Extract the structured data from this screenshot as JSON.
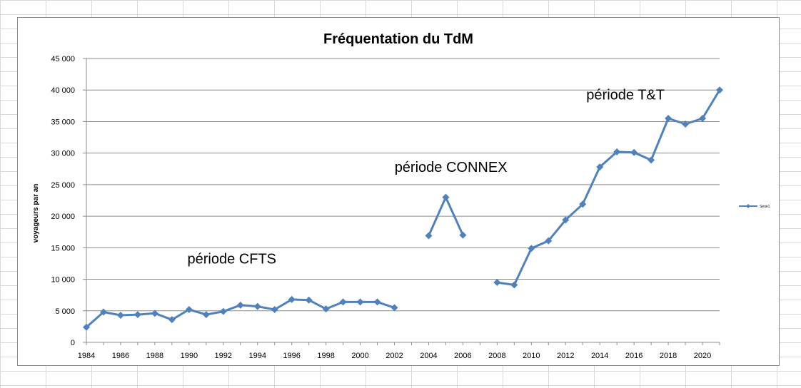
{
  "chart_data": {
    "type": "line",
    "title": "Fréquentation du TdM",
    "xlabel": "",
    "ylabel": "voyageurs par an",
    "ylim": [
      0,
      45000
    ],
    "xlim": [
      1984,
      2021
    ],
    "grid": true,
    "legend_position": "right",
    "y_ticks": [
      "0",
      "5 000",
      "10 000",
      "15 000",
      "20 000",
      "25 000",
      "30 000",
      "35 000",
      "40 000",
      "45 000"
    ],
    "x_ticks": [
      "1984",
      "1986",
      "1988",
      "1990",
      "1992",
      "1994",
      "1996",
      "1998",
      "2000",
      "2002",
      "2004",
      "2006",
      "2008",
      "2010",
      "2012",
      "2014",
      "2016",
      "2018",
      "2020"
    ],
    "series": [
      {
        "name": "Série1",
        "color": "#4f81bd",
        "segments": [
          {
            "x": [
              1984,
              1985,
              1986,
              1987,
              1988,
              1989,
              1990,
              1991,
              1992,
              1993,
              1994,
              1995,
              1996,
              1997,
              1998,
              1999,
              2000,
              2001,
              2002
            ],
            "y": [
              2400,
              4800,
              4300,
              4400,
              4600,
              3600,
              5200,
              4400,
              4900,
              5900,
              5700,
              5200,
              6800,
              6700,
              5300,
              6400,
              6400,
              6400,
              5500
            ]
          },
          {
            "x": [
              2004,
              2005,
              2006
            ],
            "y": [
              16900,
              23000,
              17000
            ]
          },
          {
            "x": [
              2008,
              2009,
              2010,
              2011,
              2012,
              2013,
              2014,
              2015,
              2016,
              2017,
              2018,
              2019,
              2020,
              2021
            ],
            "y": [
              9500,
              9100,
              14900,
              16100,
              19400,
              21900,
              27800,
              30200,
              30100,
              28900,
              35500,
              34600,
              35500,
              40000
            ]
          }
        ]
      }
    ],
    "annotations": [
      {
        "text": "période CFTS",
        "x": 1992.5,
        "y": 12500
      },
      {
        "text": "période CONNEX",
        "x": 2005.3,
        "y": 27000
      },
      {
        "text": "période T&T",
        "x": 2015.5,
        "y": 38500
      }
    ]
  }
}
